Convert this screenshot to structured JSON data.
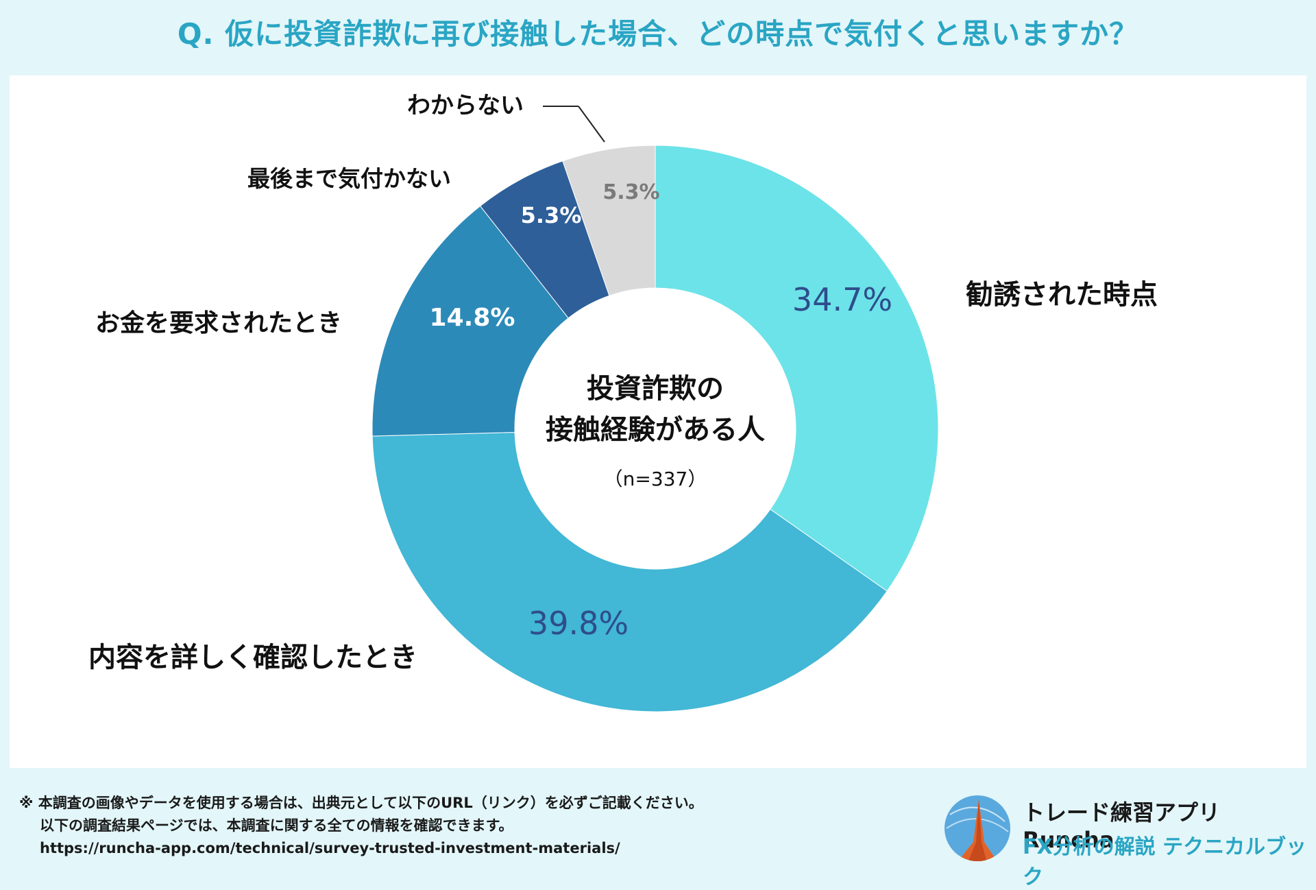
{
  "title": "Q. 仮に投資詐欺に再び接触した場合、どの時点で気付くと思いますか？",
  "chart_data": {
    "type": "pie",
    "variant": "donut",
    "title": "Q. 仮に投資詐欺に再び接触した場合、どの時点で気付くと思いますか？",
    "center_label_line1": "投資詐欺の",
    "center_label_line2": "接触経験がある人",
    "sample_size": "（n=337）",
    "slices": [
      {
        "label": "勧誘された時点",
        "value": 34.7,
        "value_label": "34.7%",
        "color": "#6ce3e8",
        "label_color": "#2e4d8c"
      },
      {
        "label": "内容を詳しく確認したとき",
        "value": 39.8,
        "value_label": "39.8%",
        "color": "#42b7d6",
        "label_color": "#2e4d8c"
      },
      {
        "label": "お金を要求されたとき",
        "value": 14.8,
        "value_label": "14.8%",
        "color": "#2c8ab8",
        "label_color": "#ffffff"
      },
      {
        "label": "最後まで気付かない",
        "value": 5.3,
        "value_label": "5.3%",
        "color": "#2e5f99",
        "label_color": "#ffffff"
      },
      {
        "label": "わからない",
        "value": 5.3,
        "value_label": "5.3%",
        "color": "#d9d9d9",
        "label_color": "#7a7a7a"
      }
    ]
  },
  "footer": {
    "note_line1": "※ 本調査の画像やデータを使用する場合は、出典元として以下のURL（リンク）を必ずご記載ください。",
    "note_line2": "以下の調査結果ページでは、本調査に関する全ての情報を確認できます。",
    "url": "https://runcha-app.com/technical/survey-trusted-investment-materials/"
  },
  "brand": {
    "app_name": "トレード練習アプリ  Runcha",
    "tagline": "FX分析の解説  テクニカルブック"
  }
}
